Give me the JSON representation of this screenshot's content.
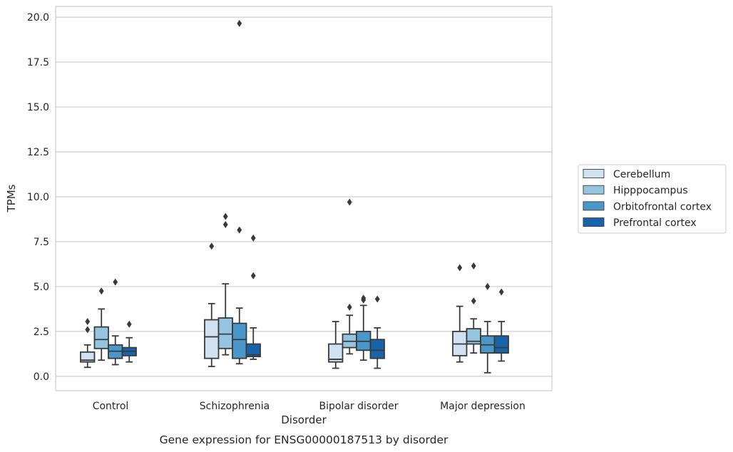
{
  "chart_data": {
    "type": "box",
    "xlabel": "Disorder",
    "ylabel": "TPMs",
    "caption": "Gene expression for ENSG00000187513 by disorder",
    "ylim": [
      -0.8,
      20.6
    ],
    "yticks": [
      "0.0",
      "2.5",
      "5.0",
      "7.5",
      "10.0",
      "12.5",
      "15.0",
      "17.5",
      "20.0"
    ],
    "ytick_values": [
      0,
      2.5,
      5,
      7.5,
      10,
      12.5,
      15,
      17.5,
      20
    ],
    "grid": true,
    "legend_position": "right",
    "categories": [
      "Control",
      "Schizophrenia",
      "Bipolar disorder",
      "Major depression"
    ],
    "series": [
      {
        "name": "Cerebellum",
        "color": "#d0e1f2",
        "boxes": [
          {
            "whislo": 0.5,
            "q1": 0.8,
            "med": 0.9,
            "q3": 1.35,
            "whishi": 1.75,
            "fliers": [
              2.6,
              3.05
            ]
          },
          {
            "whislo": 0.55,
            "q1": 1.0,
            "med": 2.2,
            "q3": 3.15,
            "whishi": 4.05,
            "fliers": [
              7.25
            ]
          },
          {
            "whislo": 0.45,
            "q1": 0.8,
            "med": 0.95,
            "q3": 1.8,
            "whishi": 3.05,
            "fliers": []
          },
          {
            "whislo": 0.8,
            "q1": 1.15,
            "med": 1.8,
            "q3": 2.5,
            "whishi": 3.9,
            "fliers": [
              6.05
            ]
          }
        ]
      },
      {
        "name": "Hipppocampus",
        "color": "#94c4df",
        "boxes": [
          {
            "whislo": 0.9,
            "q1": 1.55,
            "med": 2.05,
            "q3": 2.75,
            "whishi": 3.75,
            "fliers": [
              4.75
            ]
          },
          {
            "whislo": 1.2,
            "q1": 1.55,
            "med": 2.35,
            "q3": 3.25,
            "whishi": 5.15,
            "fliers": [
              8.45,
              8.9
            ]
          },
          {
            "whislo": 1.25,
            "q1": 1.6,
            "med": 1.95,
            "q3": 2.35,
            "whishi": 3.4,
            "fliers": [
              3.85,
              9.7
            ]
          },
          {
            "whislo": 1.3,
            "q1": 1.8,
            "med": 1.95,
            "q3": 2.65,
            "whishi": 3.2,
            "fliers": [
              4.2,
              6.15
            ]
          }
        ]
      },
      {
        "name": "Orbitofrontal cortex",
        "color": "#4a98c9",
        "boxes": [
          {
            "whislo": 0.65,
            "q1": 1.0,
            "med": 1.4,
            "q3": 1.75,
            "whishi": 2.25,
            "fliers": [
              5.25
            ]
          },
          {
            "whislo": 0.7,
            "q1": 1.0,
            "med": 2.05,
            "q3": 2.95,
            "whishi": 3.8,
            "fliers": [
              8.15,
              19.65
            ]
          },
          {
            "whislo": 0.9,
            "q1": 1.45,
            "med": 1.95,
            "q3": 2.5,
            "whishi": 3.95,
            "fliers": [
              4.25,
              4.35
            ]
          },
          {
            "whislo": 0.2,
            "q1": 1.3,
            "med": 1.75,
            "q3": 2.25,
            "whishi": 3.05,
            "fliers": [
              5.0
            ]
          }
        ]
      },
      {
        "name": "Prefrontal cortex",
        "color": "#1764ab",
        "boxes": [
          {
            "whislo": 0.8,
            "q1": 1.15,
            "med": 1.4,
            "q3": 1.6,
            "whishi": 2.15,
            "fliers": [
              2.9
            ]
          },
          {
            "whislo": 0.95,
            "q1": 1.1,
            "med": 1.2,
            "q3": 1.8,
            "whishi": 2.7,
            "fliers": [
              5.6,
              7.7
            ]
          },
          {
            "whislo": 0.45,
            "q1": 1.0,
            "med": 1.45,
            "q3": 2.05,
            "whishi": 2.7,
            "fliers": [
              4.3
            ]
          },
          {
            "whislo": 0.85,
            "q1": 1.3,
            "med": 1.6,
            "q3": 2.25,
            "whishi": 3.05,
            "fliers": [
              4.7
            ]
          }
        ]
      }
    ]
  }
}
